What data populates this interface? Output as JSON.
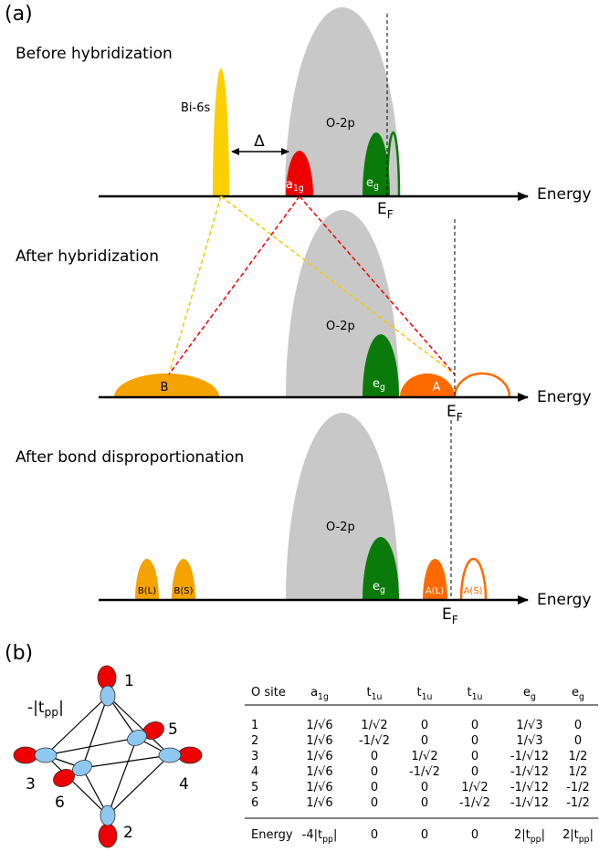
{
  "panel_a": {
    "label": "(a)",
    "energy_axis": "Energy",
    "fermi": {
      "pre": "E",
      "sub": "F"
    },
    "before": {
      "title": "Before hybridization",
      "bi": "Bi-6s",
      "delta": "Δ",
      "o2p": "O-2p",
      "a1g": {
        "pre": "a",
        "sub": "1g"
      },
      "eg": {
        "pre": "e",
        "sub": "g"
      }
    },
    "after": {
      "title": "After hybridization",
      "o2p": "O-2p",
      "eg": {
        "pre": "e",
        "sub": "g"
      },
      "b": "B",
      "a": "A"
    },
    "disprop": {
      "title": "After bond disproportionation",
      "o2p": "O-2p",
      "eg": {
        "pre": "e",
        "sub": "g"
      },
      "bl": "B(L)",
      "bs": "B(S)",
      "al": "A(L)",
      "as": "A(S)"
    }
  },
  "panel_b": {
    "label": "(b)",
    "sites": [
      "1",
      "2",
      "3",
      "4",
      "5",
      "6"
    ],
    "hopping": {
      "pre": "-|t",
      "sub": "pp",
      "post": "|"
    },
    "table": {
      "header": [
        "O site",
        {
          "pre": "a",
          "sub": "1g"
        },
        {
          "pre": "t",
          "sub": "1u"
        },
        {
          "pre": "t",
          "sub": "1u"
        },
        {
          "pre": "t",
          "sub": "1u"
        },
        {
          "pre": "e",
          "sub": "g"
        },
        {
          "pre": "e",
          "sub": "g"
        }
      ],
      "rows": [
        [
          "1",
          "1/√6",
          "1/√2",
          "0",
          "0",
          "1/√3",
          "0"
        ],
        [
          "2",
          "1/√6",
          "-1/√2",
          "0",
          "0",
          "1/√3",
          "0"
        ],
        [
          "3",
          "1/√6",
          "0",
          "1/√2",
          "0",
          "-1/√12",
          "1/2"
        ],
        [
          "4",
          "1/√6",
          "0",
          "-1/√2",
          "0",
          "-1/√12",
          "1/2"
        ],
        [
          "5",
          "1/√6",
          "0",
          "0",
          "1/√2",
          "-1/√12",
          "-1/2"
        ],
        [
          "6",
          "1/√6",
          "0",
          "0",
          "-1/√2",
          "-1/√12",
          "-1/2"
        ]
      ],
      "energy": [
        "Energy",
        {
          "pre": "-4|t",
          "sub": "pp",
          "post": "|"
        },
        "0",
        "0",
        "0",
        {
          "pre": "2|t",
          "sub": "pp",
          "post": "|"
        },
        {
          "pre": "2|t",
          "sub": "pp",
          "post": "|"
        }
      ]
    }
  }
}
